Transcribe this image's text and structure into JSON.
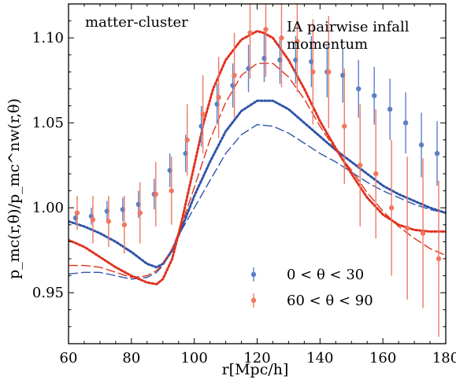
{
  "chart_data": {
    "type": "scatter",
    "title": "",
    "xlabel": "r[Mpc/h]",
    "ylabel": "p_mc(r,θ)/p_mc^nw(r,θ)",
    "xlim": [
      60,
      180
    ],
    "ylim": [
      0.92,
      1.12
    ],
    "grid": false,
    "x_ticks": [
      "60",
      "80",
      "100",
      "120",
      "140",
      "160",
      "180"
    ],
    "y_ticks": [
      "0.95",
      "1.00",
      "1.05",
      "1.10"
    ],
    "annotations": {
      "left": "matter-cluster",
      "right_line1": "IA pairwise infall",
      "right_line2": "momentum"
    },
    "legend_placement": "lower-center",
    "colors": {
      "blue": "#2f55a8",
      "red": "#f0604a",
      "blue_point": "#5b7fc7",
      "red_point": "#ef7860"
    },
    "series": [
      {
        "name": "0 < θ < 30",
        "color": "#5b7fc7",
        "x": [
          62.5,
          67.5,
          72.5,
          77.5,
          82.5,
          87.5,
          92.5,
          97.5,
          102.5,
          107.5,
          112.5,
          117.5,
          122.5,
          127.5,
          132.5,
          137.5,
          142.5,
          147.5,
          152.5,
          157.5,
          162.5,
          167.5,
          172.5,
          177.5
        ],
        "y": [
          0.994,
          0.995,
          0.998,
          0.999,
          1.002,
          1.008,
          1.022,
          1.032,
          1.048,
          1.061,
          1.072,
          1.082,
          1.088,
          1.087,
          1.087,
          1.086,
          1.08,
          1.078,
          1.07,
          1.066,
          1.058,
          1.05,
          1.037,
          1.032
        ],
        "err": [
          0.004,
          0.005,
          0.006,
          0.007,
          0.008,
          0.009,
          0.01,
          0.011,
          0.012,
          0.012,
          0.013,
          0.014,
          0.014,
          0.014,
          0.014,
          0.015,
          0.015,
          0.016,
          0.017,
          0.017,
          0.018,
          0.018,
          0.019,
          0.019
        ]
      },
      {
        "name": "60 < θ < 90",
        "color": "#ef7860",
        "x": [
          62.5,
          67.5,
          72.5,
          77.5,
          82.5,
          87.5,
          92.5,
          97.5,
          102.5,
          107.5,
          112.5,
          117.5,
          122.5,
          127.5,
          132.5,
          137.5,
          142.5,
          147.5,
          152.5,
          157.5,
          162.5,
          167.5,
          172.5,
          177.5
        ],
        "y": [
          0.997,
          0.993,
          0.992,
          0.99,
          0.997,
          1.008,
          1.01,
          1.04,
          1.055,
          1.065,
          1.078,
          1.103,
          1.105,
          1.1,
          1.098,
          1.08,
          1.08,
          1.048,
          1.025,
          1.02,
          1.0,
          0.988,
          0.985,
          0.97
        ],
        "err": [
          0.01,
          0.014,
          0.015,
          0.017,
          0.018,
          0.019,
          0.02,
          0.021,
          0.023,
          0.024,
          0.025,
          0.027,
          0.028,
          0.029,
          0.03,
          0.031,
          0.033,
          0.034,
          0.036,
          0.038,
          0.04,
          0.042,
          0.044,
          0.046
        ]
      }
    ],
    "model_curves": [
      {
        "color": "#2f55a8",
        "style": "dotted",
        "x": [
          60,
          65,
          70,
          75,
          80,
          85,
          88,
          90,
          93,
          96,
          100,
          105,
          110,
          115,
          120,
          125,
          130,
          135,
          140,
          145,
          150,
          155,
          160,
          165,
          170,
          175,
          180
        ],
        "y": [
          0.992,
          0.989,
          0.985,
          0.98,
          0.974,
          0.967,
          0.965,
          0.967,
          0.975,
          0.988,
          1.007,
          1.027,
          1.045,
          1.057,
          1.063,
          1.063,
          1.058,
          1.05,
          1.042,
          1.034,
          1.027,
          1.02,
          1.013,
          1.008,
          1.004,
          1.0,
          0.997
        ]
      },
      {
        "color": "#2f55a8",
        "style": "dashed",
        "x": [
          60,
          65,
          70,
          75,
          80,
          85,
          88,
          90,
          93,
          96,
          100,
          105,
          110,
          115,
          120,
          125,
          130,
          135,
          140,
          145,
          150,
          155,
          160,
          165,
          170,
          175,
          180
        ],
        "y": [
          0.961,
          0.962,
          0.962,
          0.96,
          0.958,
          0.959,
          0.962,
          0.966,
          0.975,
          0.987,
          1.0,
          1.016,
          1.032,
          1.043,
          1.049,
          1.048,
          1.044,
          1.038,
          1.032,
          1.027,
          1.021,
          1.015,
          1.01,
          1.006,
          1.002,
          0.999,
          0.997
        ]
      },
      {
        "color": "#e0321e",
        "style": "dotted",
        "x": [
          60,
          65,
          70,
          75,
          80,
          85,
          88,
          90,
          93,
          96,
          100,
          103,
          106,
          110,
          115,
          120,
          122,
          125,
          130,
          135,
          140,
          145,
          150,
          155,
          160,
          165,
          170,
          175,
          180
        ],
        "y": [
          0.981,
          0.977,
          0.971,
          0.965,
          0.96,
          0.956,
          0.955,
          0.958,
          0.97,
          0.992,
          1.025,
          1.05,
          1.07,
          1.087,
          1.099,
          1.104,
          1.103,
          1.1,
          1.087,
          1.07,
          1.051,
          1.035,
          1.02,
          1.006,
          0.996,
          0.99,
          0.987,
          0.986,
          0.986
        ]
      },
      {
        "color": "#e0321e",
        "style": "dashed",
        "x": [
          60,
          65,
          70,
          75,
          80,
          85,
          88,
          90,
          93,
          96,
          100,
          105,
          110,
          115,
          120,
          125,
          130,
          135,
          140,
          145,
          150,
          155,
          160,
          165,
          170,
          175,
          180
        ],
        "y": [
          0.966,
          0.966,
          0.965,
          0.962,
          0.959,
          0.96,
          0.963,
          0.967,
          0.976,
          0.99,
          1.012,
          1.04,
          1.062,
          1.078,
          1.085,
          1.085,
          1.077,
          1.064,
          1.048,
          1.034,
          1.022,
          1.009,
          0.998,
          0.989,
          0.982,
          0.976,
          0.972
        ]
      }
    ]
  }
}
